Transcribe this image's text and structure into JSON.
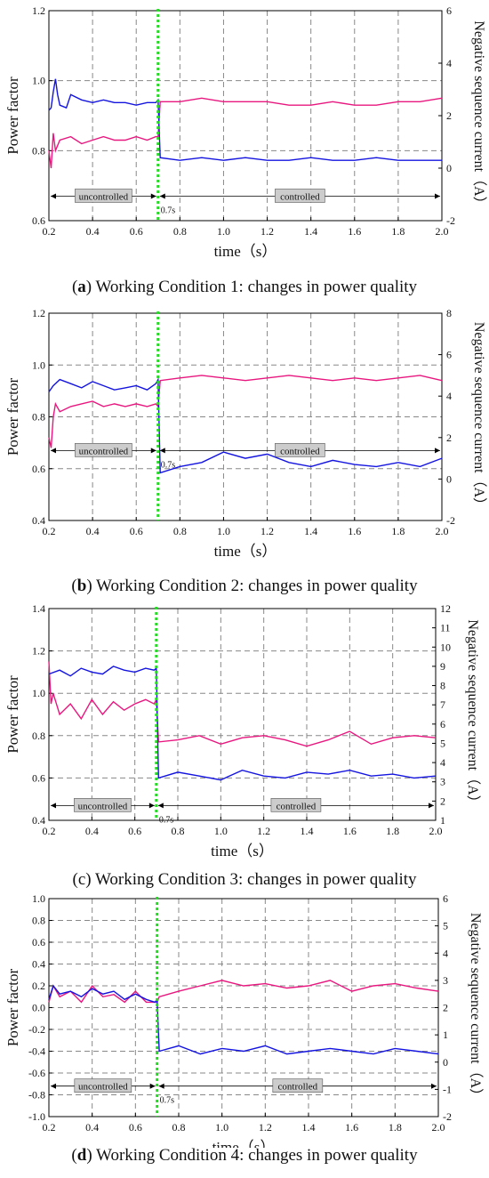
{
  "figure": {
    "captions": [
      {
        "letter": "a",
        "text": " Working Condition 1: changes in power quality"
      },
      {
        "letter": "b",
        "text": " Working Condition 2: changes in power quality"
      },
      {
        "letter": "c",
        "text": " Working Condition 3: changes in power quality"
      },
      {
        "letter": "d",
        "text": " Working Condition 4: changes in power quality"
      }
    ]
  },
  "colors": {
    "power_factor": "#e8177f",
    "negative_current": "#1414e0",
    "marker_line": "#22dd22",
    "grid": "#888888",
    "label_box": "#cccccc"
  },
  "chart_data": [
    {
      "type": "line",
      "xlabel": "time（s）",
      "ylabel": "Power factor",
      "y2label": "Negative sequence current（A）",
      "xlim": [
        0.2,
        2.0
      ],
      "ylim": [
        0.6,
        1.2
      ],
      "y2lim": [
        -2,
        6
      ],
      "xticks": [
        0.2,
        0.4,
        0.6,
        0.8,
        1.0,
        1.2,
        1.4,
        1.6,
        1.8,
        2.0
      ],
      "yticks": [
        0.6,
        0.8,
        1.0,
        1.2
      ],
      "y2ticks": [
        -2,
        0,
        2,
        4,
        6
      ],
      "marker_x": 0.7,
      "marker_label": "0.7s",
      "annotations": {
        "uncontrolled": "uncontrolled",
        "controlled": "controlled",
        "arrow_y": 0.67
      },
      "series": [
        {
          "axis": "left",
          "x": [
            0.2,
            0.21,
            0.22,
            0.23,
            0.25,
            0.3,
            0.35,
            0.4,
            0.45,
            0.5,
            0.55,
            0.6,
            0.65,
            0.69,
            0.7,
            0.71,
            0.8,
            0.9,
            1.0,
            1.1,
            1.2,
            1.3,
            1.4,
            1.5,
            1.6,
            1.7,
            1.8,
            1.9,
            2.0
          ],
          "values": [
            0.8,
            0.75,
            0.85,
            0.8,
            0.83,
            0.84,
            0.82,
            0.83,
            0.84,
            0.83,
            0.83,
            0.84,
            0.83,
            0.84,
            0.84,
            0.94,
            0.94,
            0.95,
            0.94,
            0.94,
            0.94,
            0.93,
            0.93,
            0.94,
            0.93,
            0.93,
            0.94,
            0.94,
            0.95
          ]
        },
        {
          "axis": "right",
          "x": [
            0.2,
            0.21,
            0.22,
            0.23,
            0.24,
            0.25,
            0.28,
            0.3,
            0.35,
            0.4,
            0.45,
            0.5,
            0.55,
            0.6,
            0.65,
            0.69,
            0.7,
            0.71,
            0.8,
            0.9,
            1.0,
            1.1,
            1.2,
            1.3,
            1.4,
            1.5,
            1.6,
            1.7,
            1.8,
            1.9,
            2.0
          ],
          "values": [
            2.2,
            2.3,
            2.9,
            3.4,
            2.8,
            2.4,
            2.3,
            2.8,
            2.6,
            2.5,
            2.6,
            2.5,
            2.5,
            2.4,
            2.5,
            2.5,
            2.6,
            0.4,
            0.3,
            0.4,
            0.3,
            0.4,
            0.3,
            0.3,
            0.4,
            0.3,
            0.3,
            0.4,
            0.3,
            0.3,
            0.3
          ]
        }
      ]
    },
    {
      "type": "line",
      "xlabel": "time（s）",
      "ylabel": "Power factor",
      "y2label": "Negative sequence current（A）",
      "xlim": [
        0.2,
        2.0
      ],
      "ylim": [
        0.4,
        1.2
      ],
      "y2lim": [
        -2,
        8
      ],
      "xticks": [
        0.2,
        0.4,
        0.6,
        0.8,
        1.0,
        1.2,
        1.4,
        1.6,
        1.8,
        2.0
      ],
      "yticks": [
        0.4,
        0.6,
        0.8,
        1.0,
        1.2
      ],
      "y2ticks": [
        -2,
        0,
        2,
        4,
        6,
        8
      ],
      "marker_x": 0.7,
      "marker_label": "0.7s",
      "annotations": {
        "uncontrolled": "uncontrolled",
        "controlled": "controlled",
        "arrow_y": 0.67
      },
      "series": [
        {
          "axis": "left",
          "x": [
            0.2,
            0.21,
            0.22,
            0.23,
            0.25,
            0.3,
            0.35,
            0.4,
            0.45,
            0.5,
            0.55,
            0.6,
            0.65,
            0.69,
            0.7,
            0.71,
            0.8,
            0.9,
            1.0,
            1.1,
            1.2,
            1.3,
            1.4,
            1.5,
            1.6,
            1.7,
            1.8,
            1.9,
            2.0
          ],
          "values": [
            0.72,
            0.68,
            0.8,
            0.85,
            0.82,
            0.84,
            0.85,
            0.86,
            0.84,
            0.85,
            0.84,
            0.85,
            0.84,
            0.85,
            0.84,
            0.94,
            0.95,
            0.96,
            0.95,
            0.94,
            0.95,
            0.96,
            0.95,
            0.94,
            0.95,
            0.94,
            0.95,
            0.96,
            0.94
          ]
        },
        {
          "axis": "right",
          "x": [
            0.2,
            0.22,
            0.25,
            0.3,
            0.35,
            0.4,
            0.45,
            0.5,
            0.55,
            0.6,
            0.65,
            0.69,
            0.7,
            0.71,
            0.8,
            0.9,
            1.0,
            1.1,
            1.2,
            1.3,
            1.4,
            1.5,
            1.6,
            1.7,
            1.8,
            1.9,
            2.0
          ],
          "values": [
            4.2,
            4.5,
            4.8,
            4.6,
            4.4,
            4.7,
            4.5,
            4.3,
            4.4,
            4.5,
            4.3,
            4.6,
            4.8,
            0.3,
            0.6,
            0.8,
            1.3,
            1.0,
            1.2,
            0.8,
            0.6,
            0.9,
            0.7,
            0.6,
            0.8,
            0.6,
            1.0
          ]
        }
      ]
    },
    {
      "type": "line",
      "xlabel": "time（s）",
      "ylabel": "Power factor",
      "y2label": "Negative sequence current（A）",
      "xlim": [
        0.2,
        2.0
      ],
      "ylim": [
        0.4,
        1.4
      ],
      "y2lim": [
        1,
        12
      ],
      "xticks": [
        0.2,
        0.4,
        0.6,
        0.8,
        1.0,
        1.2,
        1.4,
        1.6,
        1.8,
        2.0
      ],
      "yticks": [
        0.4,
        0.6,
        0.8,
        1.0,
        1.2,
        1.4
      ],
      "y2ticks": [
        1,
        2,
        3,
        4,
        5,
        6,
        7,
        8,
        9,
        10,
        11,
        12
      ],
      "marker_x": 0.7,
      "marker_label": "0.7s",
      "annotations": {
        "uncontrolled": "uncontrolled",
        "controlled": "controlled",
        "arrow_y": 0.47
      },
      "series": [
        {
          "axis": "left",
          "x": [
            0.2,
            0.21,
            0.22,
            0.25,
            0.3,
            0.35,
            0.4,
            0.45,
            0.5,
            0.55,
            0.6,
            0.65,
            0.69,
            0.7,
            0.71,
            0.8,
            0.9,
            1.0,
            1.1,
            1.2,
            1.3,
            1.4,
            1.5,
            1.6,
            1.7,
            1.8,
            1.9,
            2.0
          ],
          "values": [
            1.15,
            0.95,
            1.0,
            0.9,
            0.95,
            0.88,
            0.97,
            0.9,
            0.96,
            0.92,
            0.95,
            0.97,
            0.95,
            0.97,
            0.77,
            0.78,
            0.8,
            0.76,
            0.79,
            0.8,
            0.78,
            0.75,
            0.78,
            0.82,
            0.76,
            0.79,
            0.8,
            0.79
          ]
        },
        {
          "axis": "right",
          "x": [
            0.2,
            0.25,
            0.3,
            0.35,
            0.4,
            0.45,
            0.5,
            0.55,
            0.6,
            0.65,
            0.69,
            0.7,
            0.71,
            0.8,
            0.9,
            1.0,
            1.1,
            1.2,
            1.3,
            1.4,
            1.5,
            1.6,
            1.7,
            1.8,
            1.9,
            2.0
          ],
          "values": [
            8.6,
            8.8,
            8.5,
            8.9,
            8.7,
            8.6,
            9.0,
            8.8,
            8.7,
            8.9,
            8.8,
            8.9,
            3.2,
            3.5,
            3.3,
            3.1,
            3.6,
            3.3,
            3.2,
            3.5,
            3.4,
            3.6,
            3.3,
            3.4,
            3.2,
            3.3
          ]
        }
      ]
    },
    {
      "type": "line",
      "xlabel": "time（s）",
      "ylabel": "Power factor",
      "y2label": "Negative sequence current（A）",
      "xlim": [
        0.2,
        2.0
      ],
      "ylim": [
        -1.0,
        1.0
      ],
      "y2lim": [
        -2,
        6
      ],
      "xticks": [
        0.2,
        0.4,
        0.6,
        0.8,
        1.0,
        1.2,
        1.4,
        1.6,
        1.8,
        2.0
      ],
      "yticks": [
        -1.0,
        -0.8,
        -0.6,
        -0.4,
        -0.2,
        0.0,
        0.2,
        0.4,
        0.6,
        0.8,
        1.0
      ],
      "y2ticks": [
        -2,
        -1,
        0,
        1,
        2,
        3,
        4,
        5,
        6
      ],
      "marker_x": 0.7,
      "marker_label": "0.7s",
      "annotations": {
        "uncontrolled": "uncontrolled",
        "controlled": "controlled",
        "arrow_y": -0.72
      },
      "series": [
        {
          "axis": "left",
          "x": [
            0.2,
            0.22,
            0.25,
            0.3,
            0.35,
            0.4,
            0.45,
            0.5,
            0.55,
            0.6,
            0.65,
            0.69,
            0.7,
            0.71,
            0.8,
            0.9,
            1.0,
            1.1,
            1.2,
            1.3,
            1.4,
            1.5,
            1.6,
            1.7,
            1.8,
            1.9,
            2.0
          ],
          "values": [
            0.05,
            0.2,
            0.1,
            0.15,
            0.05,
            0.2,
            0.1,
            0.12,
            0.05,
            0.15,
            0.05,
            0.05,
            0.05,
            0.1,
            0.15,
            0.2,
            0.25,
            0.2,
            0.22,
            0.18,
            0.2,
            0.25,
            0.15,
            0.2,
            0.22,
            0.18,
            0.15
          ]
        },
        {
          "axis": "right",
          "x": [
            0.2,
            0.22,
            0.25,
            0.3,
            0.35,
            0.4,
            0.45,
            0.5,
            0.55,
            0.6,
            0.65,
            0.69,
            0.7,
            0.71,
            0.8,
            0.9,
            1.0,
            1.1,
            1.2,
            1.3,
            1.4,
            1.5,
            1.6,
            1.7,
            1.8,
            1.9,
            2.0
          ],
          "values": [
            2.3,
            2.8,
            2.5,
            2.6,
            2.4,
            2.7,
            2.5,
            2.6,
            2.3,
            2.5,
            2.3,
            2.2,
            2.3,
            0.4,
            0.6,
            0.3,
            0.5,
            0.4,
            0.6,
            0.3,
            0.4,
            0.5,
            0.4,
            0.3,
            0.5,
            0.4,
            0.3
          ]
        }
      ]
    }
  ]
}
